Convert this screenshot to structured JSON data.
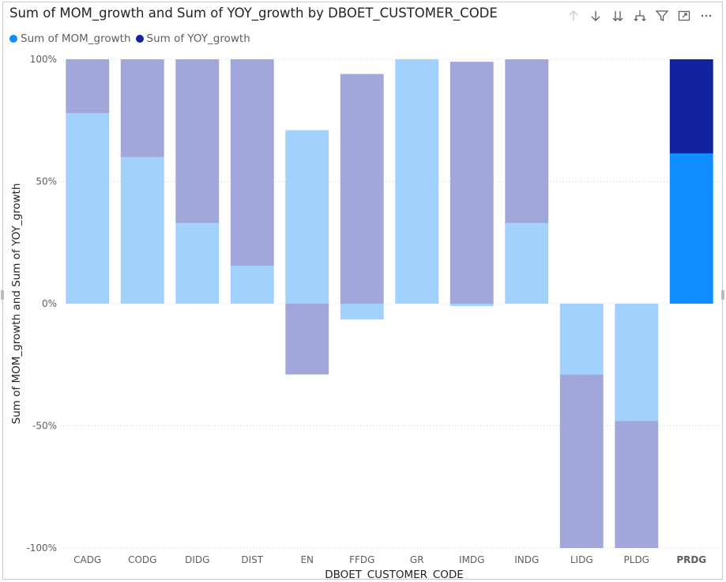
{
  "title": "Sum of MOM_growth and Sum of YOY_growth by DBOET_CUSTOMER_CODE",
  "header_icons": [
    "arrow-up-icon",
    "arrow-down-icon",
    "double-arrow-down-icon",
    "expand-hierarchy-icon",
    "filter-icon",
    "focus-mode-icon",
    "more-options-icon"
  ],
  "legend": {
    "items": [
      {
        "label": "Sum of MOM_growth",
        "color": "#118DFF"
      },
      {
        "label": "Sum of YOY_growth",
        "color": "#12239E"
      }
    ]
  },
  "chart_data": {
    "type": "bar",
    "stacked": "100%",
    "categories": [
      "CADG",
      "CODG",
      "DIDG",
      "DIST",
      "EN",
      "FFDG",
      "GR",
      "IMDG",
      "INDG",
      "LIDG",
      "PLDG",
      "PRDG"
    ],
    "series": [
      {
        "name": "Sum of MOM_growth",
        "values": [
          78,
          60,
          33,
          15.5,
          71,
          -6.5,
          100,
          -1,
          33,
          -29,
          -48,
          61.5
        ]
      },
      {
        "name": "Sum of YOY_growth",
        "values": [
          22,
          40,
          67,
          84.5,
          -29,
          94,
          0,
          99,
          67,
          -71,
          -52,
          38.5
        ]
      }
    ],
    "highlighted_category": "PRDG",
    "ylim": [
      -100,
      100
    ],
    "yticks": [
      "100%",
      "50%",
      "0%",
      "-50%",
      "-100%"
    ],
    "ytick_values": [
      100,
      50,
      0,
      -50,
      -100
    ],
    "xlabel": "DBOET_CUSTOMER_CODE",
    "ylabel": "Sum of MOM_growth and Sum of YOY_growth",
    "grid": "horizontal dotted",
    "legend_position": "top-left",
    "colors": {
      "mom": "#118DFF",
      "yoy": "#12239E",
      "mom_faded": "#A3D1FE",
      "yoy_faded": "#A1A7D8"
    }
  }
}
